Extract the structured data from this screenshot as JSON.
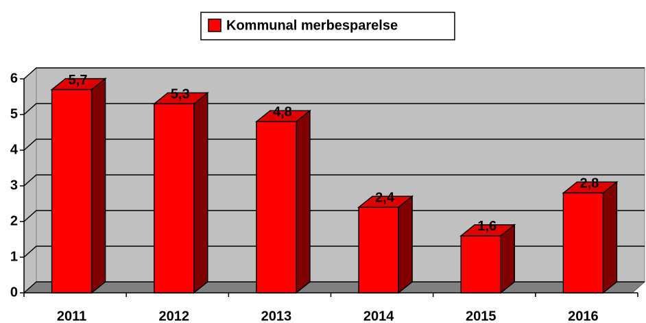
{
  "chart_data": {
    "type": "bar",
    "categories": [
      "2011",
      "2012",
      "2013",
      "2014",
      "2015",
      "2016"
    ],
    "series": [
      {
        "name": "Kommunal merbesparelse",
        "color": "#ff0000",
        "values": [
          5.7,
          5.3,
          4.8,
          2.4,
          1.6,
          2.8
        ],
        "value_labels": [
          "5,7",
          "5,3",
          "4,8",
          "2,4",
          "1,6",
          "2,8"
        ]
      }
    ],
    "ylim": [
      0,
      6
    ],
    "yticks": [
      0,
      1,
      2,
      3,
      4,
      5,
      6
    ],
    "grid": true,
    "legend": "top"
  }
}
